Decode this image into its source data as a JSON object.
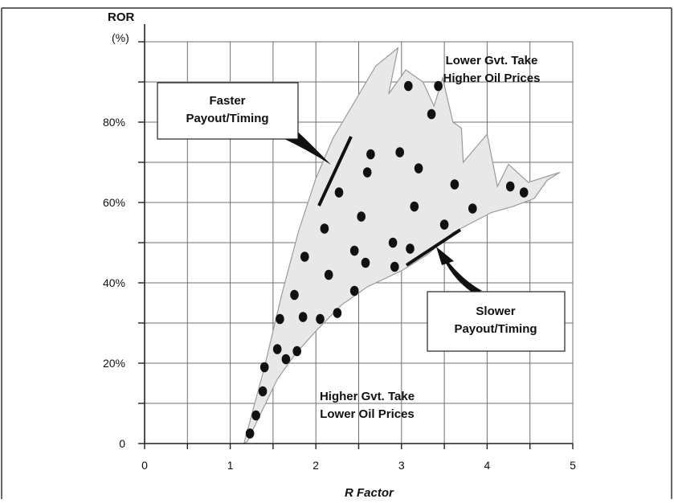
{
  "chart_data": {
    "type": "scatter",
    "xlabel": "R Factor",
    "ylabel_line1": "ROR",
    "ylabel_line2": "(%)",
    "xlim": [
      0,
      5
    ],
    "ylim": [
      0,
      100
    ],
    "grid": true,
    "x_ticks": [
      {
        "value": 0,
        "label": "0"
      },
      {
        "value": 1,
        "label": "1"
      },
      {
        "value": 2,
        "label": "2"
      },
      {
        "value": 3,
        "label": "3"
      },
      {
        "value": 4,
        "label": "4"
      },
      {
        "value": 5,
        "label": "5"
      }
    ],
    "y_ticks": [
      {
        "value": 0,
        "label": "0"
      },
      {
        "value": 20,
        "label": "20%"
      },
      {
        "value": 40,
        "label": "40%"
      },
      {
        "value": 60,
        "label": "60%"
      },
      {
        "value": 80,
        "label": "80%"
      }
    ],
    "points": [
      {
        "x": 1.23,
        "y": 2.5
      },
      {
        "x": 1.3,
        "y": 7.0
      },
      {
        "x": 1.38,
        "y": 13.0
      },
      {
        "x": 1.4,
        "y": 19.0
      },
      {
        "x": 1.55,
        "y": 23.5
      },
      {
        "x": 1.65,
        "y": 21.0
      },
      {
        "x": 1.78,
        "y": 23.0
      },
      {
        "x": 1.58,
        "y": 31.0
      },
      {
        "x": 1.75,
        "y": 37.0
      },
      {
        "x": 1.85,
        "y": 31.5
      },
      {
        "x": 1.87,
        "y": 46.5
      },
      {
        "x": 2.05,
        "y": 31.0
      },
      {
        "x": 2.1,
        "y": 53.5
      },
      {
        "x": 2.15,
        "y": 42.0
      },
      {
        "x": 2.25,
        "y": 32.5
      },
      {
        "x": 2.27,
        "y": 62.5
      },
      {
        "x": 2.45,
        "y": 38.0
      },
      {
        "x": 2.45,
        "y": 48.0
      },
      {
        "x": 2.53,
        "y": 56.5
      },
      {
        "x": 2.58,
        "y": 45.0
      },
      {
        "x": 2.6,
        "y": 67.5
      },
      {
        "x": 2.64,
        "y": 72.0
      },
      {
        "x": 2.9,
        "y": 50.0
      },
      {
        "x": 2.92,
        "y": 44.0
      },
      {
        "x": 2.98,
        "y": 72.5
      },
      {
        "x": 3.08,
        "y": 89.0
      },
      {
        "x": 3.1,
        "y": 48.5
      },
      {
        "x": 3.15,
        "y": 59.0
      },
      {
        "x": 3.2,
        "y": 68.5
      },
      {
        "x": 3.35,
        "y": 82.0
      },
      {
        "x": 3.43,
        "y": 89.0
      },
      {
        "x": 3.5,
        "y": 54.5
      },
      {
        "x": 3.62,
        "y": 64.5
      },
      {
        "x": 3.83,
        "y": 58.5
      },
      {
        "x": 4.27,
        "y": 64.0
      },
      {
        "x": 4.43,
        "y": 62.5
      }
    ],
    "annotations": {
      "top_right_line1": "Lower Gvt. Take",
      "top_right_line2": "Higher Oil Prices",
      "bottom_line1": "Higher Gvt. Take",
      "bottom_line2": "Lower Oil Prices",
      "callout_faster_line1": "Faster",
      "callout_faster_line2": "Payout/Timing",
      "callout_slower_line1": "Slower",
      "callout_slower_line2": "Payout/Timing"
    },
    "colors": {
      "region_fill": "#e8e8e8",
      "region_stroke": "#9a9a9a",
      "point": "#111111",
      "grid": "#6f6f6f"
    }
  }
}
